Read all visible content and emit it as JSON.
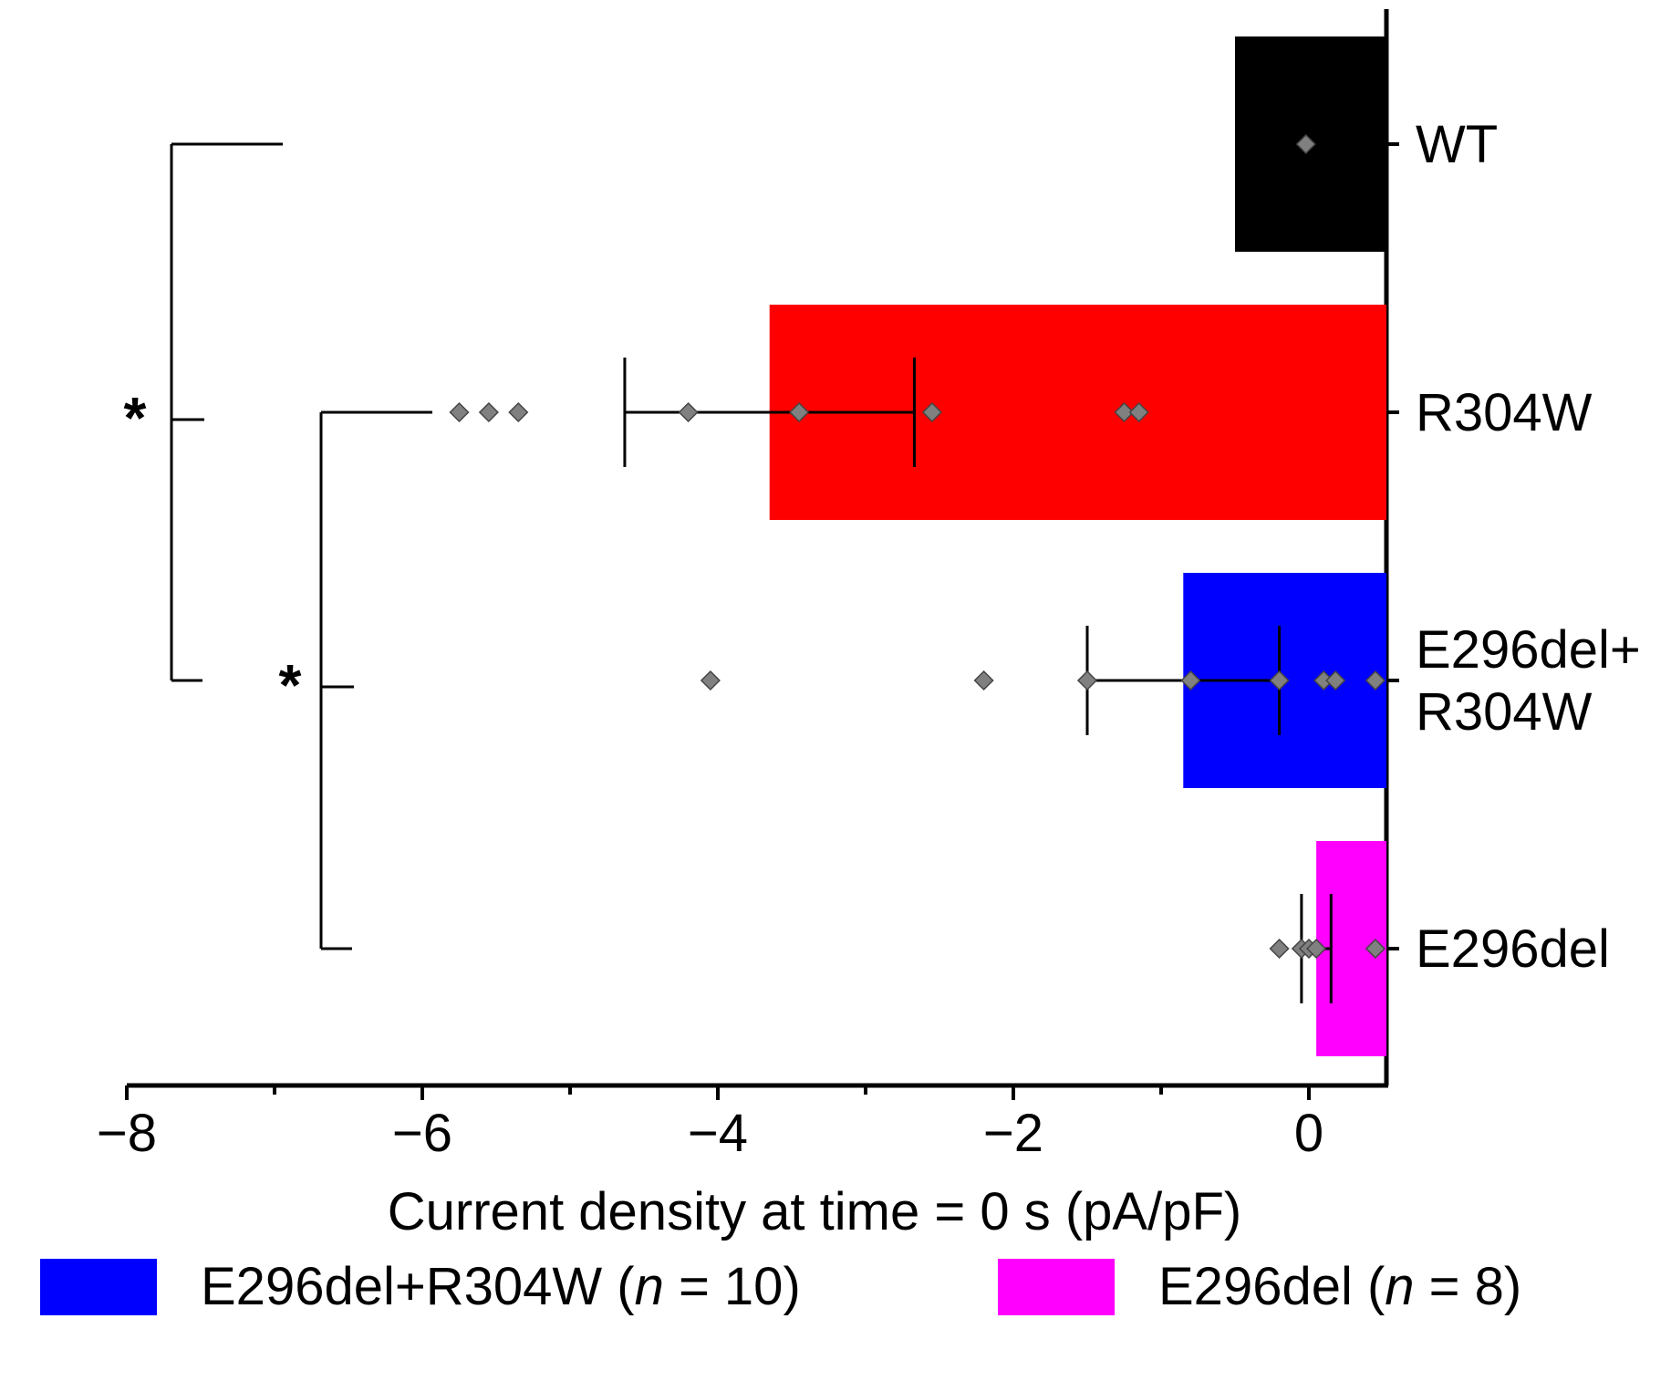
{
  "chart_data": {
    "type": "bar",
    "orientation": "horizontal",
    "xlabel": "Current density at time = 0 s (pA/pF)",
    "xlim": [
      -8,
      0.5
    ],
    "xticks": [
      -8,
      -6,
      -4,
      -2,
      0
    ],
    "xtick_labels": [
      "−8",
      "−6",
      "−4",
      "−2",
      "0"
    ],
    "categories": [
      "WT",
      "R304W",
      "E296del+\nR304W",
      "E296del"
    ],
    "series": [
      {
        "category": "WT",
        "color": "#000000",
        "mean": -0.5,
        "sem": 0,
        "points": [
          -0.02
        ]
      },
      {
        "category": "R304W",
        "color": "#ff0000",
        "mean": -3.65,
        "sem": 0.98,
        "points": [
          -5.75,
          -5.55,
          -5.35,
          -4.2,
          -3.45,
          -2.55,
          -1.25,
          -1.15
        ]
      },
      {
        "category": "E296del+\nR304W",
        "color": "#0000ff",
        "mean": -0.85,
        "sem": 0.65,
        "points": [
          -4.05,
          -2.2,
          -1.5,
          -0.8,
          -0.2,
          0.1,
          0.18,
          0.45
        ]
      },
      {
        "category": "E296del",
        "color": "#ff00ff",
        "mean": 0.05,
        "sem": 0.1,
        "points": [
          -0.2,
          -0.05,
          0.0,
          0.05,
          0.45
        ]
      }
    ],
    "significance": [
      {
        "from": "WT",
        "to": "E296del+\nR304W",
        "label": "*"
      },
      {
        "from": "R304W",
        "to": "E296del",
        "label": "*"
      }
    ],
    "legend": {
      "placement": "bottom",
      "entries": [
        {
          "color": "#0000ff",
          "label": "E296del+R304W (",
          "n_symbol": "n",
          "n_text": " = 10)"
        },
        {
          "color": "#ff00ff",
          "label": "E296del (",
          "n_symbol": "n",
          "n_text": " = 8)"
        }
      ]
    },
    "point_color": "#808080"
  }
}
